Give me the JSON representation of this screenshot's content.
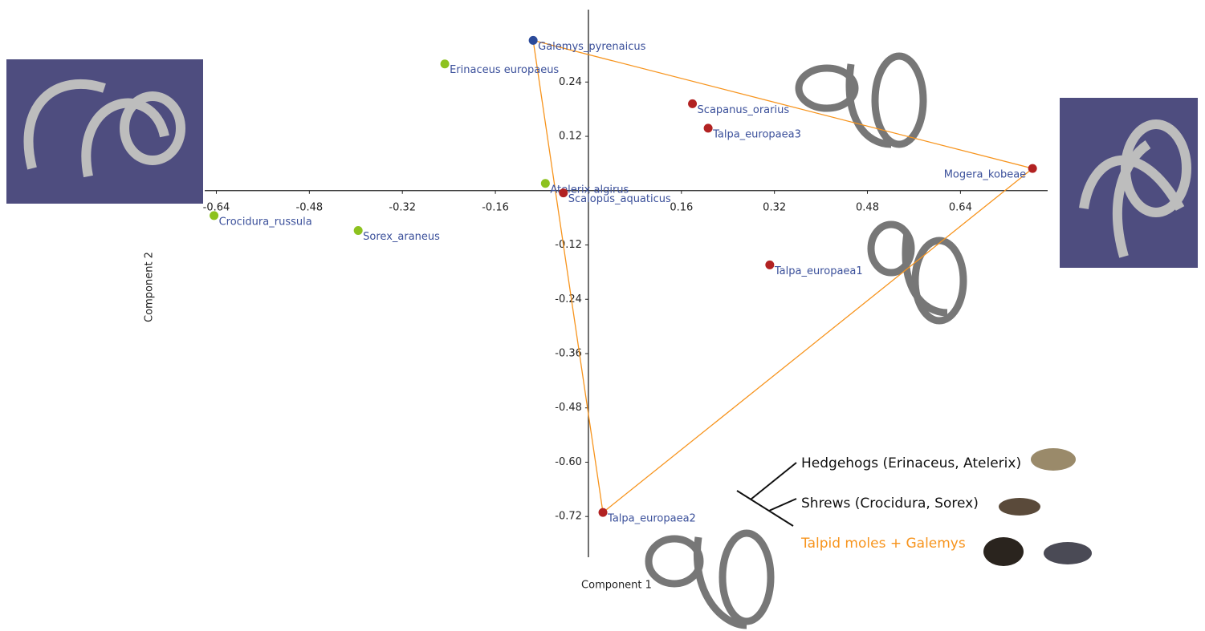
{
  "chart_data": {
    "type": "scatter",
    "x_label": "Component 1",
    "y_label": "Component 2",
    "xlim": [
      -0.66,
      0.79
    ],
    "ylim": [
      -0.81,
      0.4
    ],
    "xticks": [
      -0.64,
      -0.48,
      -0.32,
      -0.16,
      0.16,
      0.32,
      0.48,
      0.64
    ],
    "yticks": [
      0.24,
      0.12,
      -0.12,
      -0.24,
      -0.36,
      -0.48,
      {
        "value": -0.6,
        "label": "-0.60"
      },
      -0.72
    ],
    "series": [
      {
        "name": "Hedgehogs (Erinaceus, Atelerix)",
        "name_color": "#111111",
        "points": [
          {
            "label": "Erinaceus europaeus",
            "x": -0.247,
            "y": 0.28,
            "color": "#8dc21f"
          },
          {
            "label": "Atelerix algirus",
            "x": -0.074,
            "y": 0.016,
            "color": "#8dc21f"
          }
        ]
      },
      {
        "name": "Shrews (Crocidura, Sorex)",
        "name_color": "#111111",
        "points": [
          {
            "label": "Crocidura_russula",
            "x": -0.644,
            "y": -0.055,
            "color": "#8dc21f"
          },
          {
            "label": "Sorex_araneus",
            "x": -0.396,
            "y": -0.088,
            "color": "#8dc21f"
          }
        ]
      },
      {
        "name": "Talpid moles + Galemys",
        "name_color": "#f7941d",
        "hull_color": "#f7941d",
        "points": [
          {
            "label": "Galemys_pyrenaicus",
            "x": -0.095,
            "y": 0.332,
            "color": "#2b4a9a"
          },
          {
            "label": "Scapanus_orarius",
            "x": 0.179,
            "y": 0.192,
            "color": "#b22222"
          },
          {
            "label": "Talpa_europaea3",
            "x": 0.206,
            "y": 0.138,
            "color": "#b22222"
          },
          {
            "label": "Mogera_kobeae",
            "x": 0.764,
            "y": 0.049,
            "color": "#b22222"
          },
          {
            "label": "Scalopus_aquaticus",
            "x": -0.043,
            "y": -0.005,
            "color": "#b22222"
          },
          {
            "label": "Talpa_europaea1",
            "x": 0.312,
            "y": -0.164,
            "color": "#b22222"
          },
          {
            "label": "Talpa_europaea2",
            "x": 0.025,
            "y": -0.711,
            "color": "#b22222"
          }
        ]
      }
    ]
  }
}
